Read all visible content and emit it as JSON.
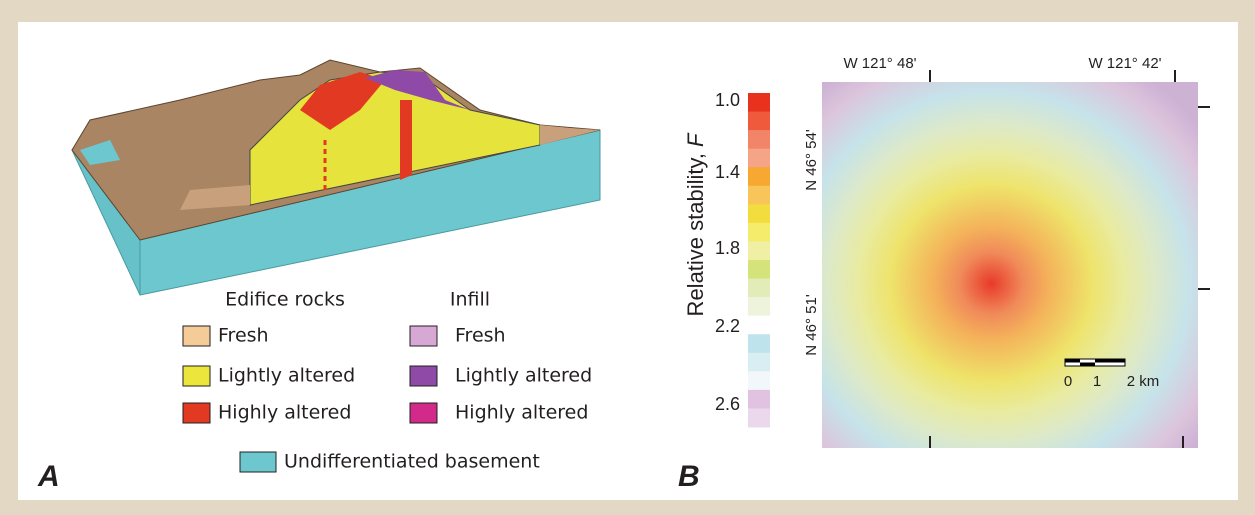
{
  "panel_a": {
    "label": "A",
    "legend": {
      "edifice_title": "Edifice rocks",
      "infill_title": "Infill",
      "edifice": [
        {
          "label": "Fresh",
          "color": "#f5cb98"
        },
        {
          "label": "Lightly altered",
          "color": "#ece53c"
        },
        {
          "label": "Highly altered",
          "color": "#e23a22"
        }
      ],
      "infill": [
        {
          "label": "Fresh",
          "color": "#d8a8d4"
        },
        {
          "label": "Lightly altered",
          "color": "#8e4aa6"
        },
        {
          "label": "Highly altered",
          "color": "#d12a8a"
        }
      ],
      "basement": {
        "label": "Undifferentiated basement",
        "color": "#6cc7cf"
      }
    }
  },
  "panel_b": {
    "label": "B",
    "colorbar": {
      "title": "Relative stability,",
      "title_var": "F",
      "ticks": [
        "1.0",
        "1.4",
        "1.8",
        "2.2",
        "2.6"
      ],
      "colors": [
        "#e8321e",
        "#ef5a3c",
        "#f28468",
        "#f5a488",
        "#f6a830",
        "#f7c55a",
        "#f3dc3e",
        "#f4ec6a",
        "#f0f0a4",
        "#d5e47a",
        "#e1ecb8",
        "#eef4dc",
        "#ffffff",
        "#bfe3ec",
        "#d8eef2",
        "#f2f8fa",
        "#e1c2e0",
        "#ecd8ec"
      ]
    },
    "map": {
      "top_labels": [
        "W 121° 48'",
        "W 121° 42'"
      ],
      "left_labels": [
        "N 46° 54'",
        "N 46° 51'"
      ],
      "scale_labels": [
        "0",
        "1",
        "2 km"
      ]
    }
  }
}
